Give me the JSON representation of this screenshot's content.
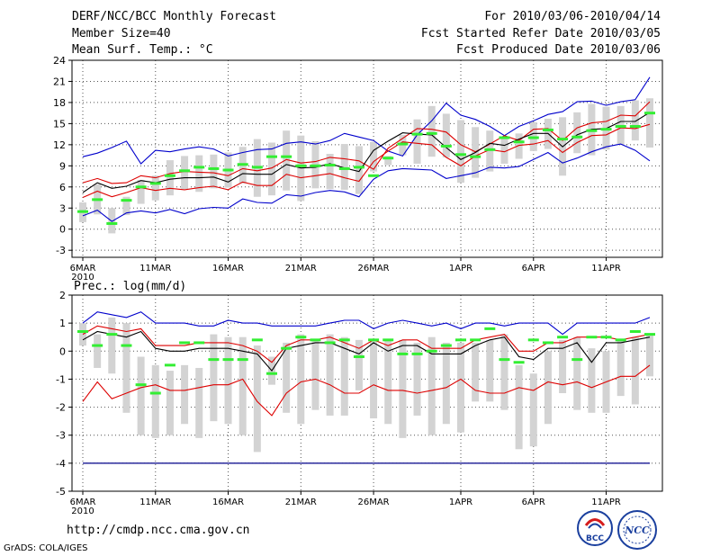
{
  "header": {
    "title": "DERF/NCC/BCC Monthly Forecast",
    "member_size": "Member Size=40",
    "variable": "Mean Surf. Temp.: °C",
    "period": "For 2010/03/06-2010/04/14",
    "fcst_started": "Fcst Started Refer Date 2010/03/05",
    "fcst_produced": "Fcst Produced Date 2010/03/06"
  },
  "footer": {
    "url": "http://cmdp.ncc.cma.gov.cn",
    "grads": "GrADS: COLA/IGES",
    "logo_bcc": "BCC",
    "logo_ncc": "NCC"
  },
  "colors": {
    "ens_box": "#d3d3d3",
    "median": "#33ee33",
    "mean": "#000000",
    "inner": "#dd0000",
    "outer": "#0000cc",
    "grid": "#555555"
  },
  "chart_data": [
    {
      "type": "box-spread",
      "title": "Mean Surf. Temp.: °C",
      "x_labels": [
        "6MAR",
        "11MAR",
        "16MAR",
        "21MAR",
        "26MAR",
        "1APR",
        "6APR",
        "11APR"
      ],
      "x_year": "2010",
      "x_label_days": [
        1,
        6,
        11,
        16,
        21,
        27,
        32,
        37
      ],
      "ylim": [
        -4,
        24
      ],
      "yticks": [
        -3,
        0,
        3,
        6,
        9,
        12,
        15,
        18,
        21,
        24
      ],
      "days": 40,
      "series": [
        {
          "name": "max",
          "values": [
            10.3,
            10.8,
            11.6,
            12.5,
            9.3,
            11.2,
            11.0,
            11.4,
            11.7,
            11.4,
            10.4,
            10.9,
            11.3,
            11.4,
            12.2,
            12.4,
            12.1,
            12.6,
            13.6,
            13.1,
            12.6,
            11.1,
            10.4,
            13.4,
            15.4,
            17.9,
            16.2,
            15.6,
            14.6,
            13.3,
            14.6,
            15.4,
            16.3,
            16.7,
            18.1,
            18.2,
            17.6,
            18.1,
            18.4,
            21.6
          ]
        },
        {
          "name": "upper",
          "values": [
            6.6,
            7.2,
            6.5,
            6.6,
            7.6,
            7.3,
            7.9,
            8.2,
            8.1,
            8.0,
            7.6,
            8.6,
            8.3,
            8.7,
            9.9,
            9.4,
            9.6,
            10.2,
            10.0,
            9.7,
            8.5,
            11.5,
            12.9,
            14.3,
            14.2,
            13.8,
            12.0,
            11.0,
            12.1,
            13.3,
            12.6,
            14.2,
            14.3,
            12.6,
            14.4,
            15.1,
            15.3,
            16.2,
            16.1,
            18.1
          ]
        },
        {
          "name": "mean",
          "values": [
            5.2,
            6.6,
            5.8,
            6.1,
            6.9,
            6.6,
            7.1,
            7.3,
            7.3,
            7.4,
            6.7,
            7.9,
            7.8,
            7.8,
            9.2,
            8.7,
            8.8,
            9.3,
            8.7,
            8.2,
            11.2,
            12.5,
            13.7,
            13.5,
            13.4,
            11.6,
            9.9,
            10.9,
            12.2,
            11.9,
            12.8,
            13.6,
            13.6,
            11.7,
            13.4,
            14.2,
            14.3,
            15.3,
            15.3,
            16.6
          ]
        },
        {
          "name": "lower",
          "values": [
            4.5,
            5.4,
            4.6,
            5.2,
            5.9,
            5.5,
            5.8,
            5.6,
            5.9,
            6.1,
            5.6,
            6.7,
            6.2,
            6.2,
            7.8,
            7.3,
            7.6,
            7.9,
            7.3,
            6.8,
            9.6,
            11.1,
            12.4,
            12.2,
            12.0,
            10.2,
            9.0,
            10.4,
            11.3,
            11.0,
            11.9,
            12.1,
            12.6,
            10.9,
            12.3,
            13.3,
            13.4,
            14.4,
            14.3,
            14.9
          ]
        },
        {
          "name": "min",
          "values": [
            1.9,
            2.7,
            1.1,
            2.3,
            2.6,
            2.3,
            2.8,
            2.2,
            2.9,
            3.1,
            3.0,
            4.3,
            3.8,
            3.7,
            4.9,
            4.7,
            5.2,
            5.5,
            5.3,
            4.6,
            7.1,
            8.3,
            8.6,
            8.5,
            8.4,
            7.2,
            7.6,
            8.0,
            8.8,
            8.7,
            8.9,
            9.9,
            10.9,
            9.4,
            10.1,
            11.0,
            11.7,
            12.1,
            11.2,
            9.7
          ]
        }
      ],
      "box_top": [
        3.8,
        6.4,
        3.0,
        4.6,
        7.0,
        7.6,
        9.8,
        10.4,
        10.5,
        10.6,
        10.9,
        11.7,
        12.8,
        12.3,
        14.0,
        13.3,
        12.5,
        10.7,
        12.1,
        11.8,
        12.4,
        10.4,
        13.4,
        15.6,
        17.5,
        16.4,
        15.5,
        14.5,
        14.0,
        13.2,
        13.6,
        15.2,
        15.7,
        15.9,
        16.6,
        17.8,
        17.4,
        17.5,
        18.3,
        18.6
      ],
      "box_bottom": [
        1.0,
        2.1,
        -0.6,
        2.0,
        3.6,
        4.1,
        4.8,
        5.7,
        5.3,
        5.8,
        5.9,
        6.5,
        4.6,
        4.8,
        5.5,
        4.0,
        5.8,
        5.7,
        5.6,
        5.0,
        8.2,
        9.1,
        10.5,
        9.3,
        10.3,
        10.2,
        6.6,
        7.3,
        8.2,
        9.3,
        10.0,
        11.1,
        11.4,
        7.6,
        10.8,
        10.5,
        11.3,
        12.0,
        12.6,
        11.6
      ],
      "median": [
        2.5,
        4.2,
        0.8,
        4.1,
        6.0,
        6.5,
        7.6,
        8.3,
        8.8,
        8.6,
        8.4,
        9.2,
        8.8,
        10.3,
        10.3,
        9.0,
        9.0,
        9.1,
        8.6,
        8.8,
        7.6,
        10.1,
        12.1,
        13.5,
        13.6,
        11.8,
        10.6,
        10.3,
        11.3,
        13.0,
        12.4,
        13.0,
        14.1,
        12.8,
        13.1,
        14.0,
        14.2,
        14.6,
        14.6,
        16.5
      ]
    },
    {
      "type": "box-spread",
      "title": "Prec.: log(mm/d)",
      "x_labels": [
        "6MAR",
        "11MAR",
        "16MAR",
        "21MAR",
        "26MAR",
        "1APR",
        "6APR",
        "11APR"
      ],
      "x_year": "2010",
      "x_label_days": [
        1,
        6,
        11,
        16,
        21,
        27,
        32,
        37
      ],
      "ylim": [
        -5,
        2
      ],
      "yticks": [
        -5,
        -4,
        -3,
        -2,
        -1,
        0,
        1,
        2
      ],
      "days": 40,
      "floor": -4,
      "series": [
        {
          "name": "max",
          "values": [
            1.0,
            1.4,
            1.3,
            1.2,
            1.4,
            1.0,
            1.0,
            1.0,
            0.9,
            0.9,
            1.1,
            1.0,
            1.0,
            0.9,
            0.9,
            0.9,
            0.9,
            1.0,
            1.1,
            1.1,
            0.8,
            1.0,
            1.1,
            1.0,
            0.9,
            1.0,
            0.8,
            1.0,
            1.0,
            0.9,
            1.0,
            1.0,
            1.0,
            0.6,
            1.0,
            1.0,
            1.0,
            1.0,
            1.0,
            1.2
          ]
        },
        {
          "name": "upper",
          "values": [
            0.6,
            0.9,
            0.8,
            0.7,
            0.8,
            0.2,
            0.2,
            0.2,
            0.3,
            0.3,
            0.3,
            0.2,
            0.0,
            -0.4,
            0.2,
            0.4,
            0.4,
            0.5,
            0.3,
            0.1,
            0.4,
            0.2,
            0.4,
            0.4,
            0.1,
            0.1,
            0.1,
            0.4,
            0.5,
            0.6,
            0.0,
            0.0,
            0.3,
            0.3,
            0.5,
            0.5,
            0.5,
            0.4,
            0.5,
            0.6
          ]
        },
        {
          "name": "mean",
          "values": [
            0.4,
            0.7,
            0.6,
            0.5,
            0.7,
            0.1,
            0.0,
            0.0,
            0.1,
            0.1,
            0.1,
            0.0,
            -0.1,
            -0.7,
            0.1,
            0.2,
            0.3,
            0.3,
            0.1,
            -0.1,
            0.3,
            0.0,
            0.2,
            0.2,
            -0.1,
            -0.1,
            -0.1,
            0.2,
            0.4,
            0.5,
            -0.2,
            -0.3,
            0.1,
            0.1,
            0.3,
            -0.4,
            0.3,
            0.3,
            0.4,
            0.5
          ]
        },
        {
          "name": "lower",
          "values": [
            -1.8,
            -1.1,
            -1.7,
            -1.5,
            -1.3,
            -1.2,
            -1.4,
            -1.4,
            -1.3,
            -1.2,
            -1.2,
            -1.0,
            -1.8,
            -2.3,
            -1.5,
            -1.1,
            -1.0,
            -1.2,
            -1.5,
            -1.5,
            -1.2,
            -1.4,
            -1.4,
            -1.5,
            -1.4,
            -1.3,
            -1.0,
            -1.4,
            -1.5,
            -1.5,
            -1.3,
            -1.4,
            -1.1,
            -1.2,
            -1.1,
            -1.3,
            -1.1,
            -0.9,
            -0.9,
            -0.5
          ]
        },
        {
          "name": "min",
          "values": [
            -4,
            -4,
            -4,
            -4,
            -4,
            -4,
            -4,
            -4,
            -4,
            -4,
            -4,
            -4,
            -4,
            -4,
            -4,
            -4,
            -4,
            -4,
            -4,
            -4,
            -4,
            -4,
            -4,
            -4,
            -4,
            -4,
            -4,
            -4,
            -4,
            -4,
            -4,
            -4,
            -4,
            -4,
            -4,
            -4,
            -4,
            -4,
            -4,
            -4
          ]
        }
      ],
      "box_top": [
        1.0,
        0.6,
        1.2,
        1.0,
        -0.2,
        -0.5,
        -0.7,
        -0.5,
        -0.6,
        0.6,
        0.5,
        0.5,
        0.2,
        -0.2,
        0.3,
        0.6,
        0.4,
        0.6,
        0.5,
        0.4,
        0.4,
        0.4,
        0.4,
        0.3,
        0.5,
        0.3,
        0.3,
        0.3,
        0.4,
        0.6,
        -0.5,
        -0.8,
        0.0,
        0.4,
        0.5,
        0.1,
        0.0,
        0.4,
        0.5,
        0.6
      ],
      "box_bottom": [
        0.2,
        -0.6,
        -0.8,
        -2.2,
        -3.0,
        -3.1,
        -3.0,
        -2.6,
        -3.1,
        -2.5,
        -2.6,
        -3.0,
        -3.6,
        -1.2,
        -2.2,
        -2.6,
        -2.1,
        -2.3,
        -2.3,
        -1.4,
        -2.4,
        -2.6,
        -3.1,
        -2.3,
        -3.0,
        -2.6,
        -2.9,
        -1.8,
        -1.8,
        -2.1,
        -3.5,
        -3.4,
        -2.6,
        -1.5,
        -2.1,
        -2.2,
        -2.2,
        -1.6,
        -1.9,
        -0.9
      ],
      "median": [
        0.7,
        0.2,
        0.6,
        0.2,
        -1.2,
        -1.5,
        -0.5,
        0.3,
        0.3,
        -0.3,
        -0.3,
        -0.3,
        0.4,
        -0.8,
        0.1,
        0.5,
        0.4,
        0.3,
        0.4,
        -0.2,
        0.4,
        0.4,
        -0.1,
        -0.1,
        0.0,
        0.2,
        0.4,
        0.4,
        0.8,
        -0.3,
        -0.4,
        0.4,
        0.3,
        0.5,
        -0.3,
        0.5,
        0.5,
        0.4,
        0.7,
        0.6
      ]
    }
  ]
}
